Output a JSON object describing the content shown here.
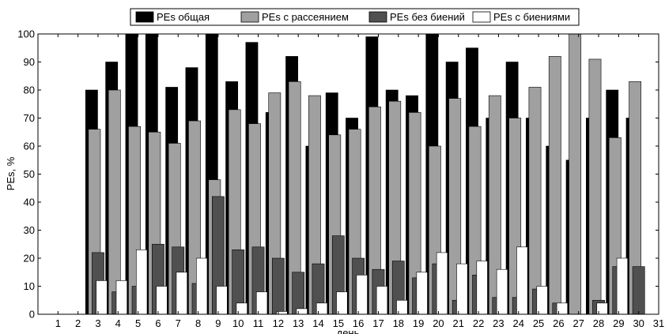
{
  "chart_data": {
    "type": "bar",
    "xlabel": "день",
    "ylabel": "PEs, %",
    "xlim": [
      0,
      31
    ],
    "ylim": [
      0,
      100
    ],
    "x_ticks": [
      1,
      2,
      3,
      4,
      5,
      6,
      7,
      8,
      9,
      10,
      11,
      12,
      13,
      14,
      15,
      16,
      17,
      18,
      19,
      20,
      21,
      22,
      23,
      24,
      25,
      26,
      27,
      28,
      29,
      30,
      31
    ],
    "y_ticks": [
      0,
      10,
      20,
      30,
      40,
      50,
      60,
      70,
      80,
      90,
      100
    ],
    "grid": false,
    "legend_position": "top-center",
    "categories": [
      3,
      4,
      5,
      6,
      7,
      8,
      9,
      10,
      11,
      12,
      13,
      14,
      15,
      16,
      17,
      18,
      19,
      20,
      21,
      22,
      23,
      24,
      25,
      26,
      27,
      28,
      29,
      30
    ],
    "series": [
      {
        "name": "PEs общая",
        "color": "#000000",
        "values": [
          80,
          90,
          100,
          100,
          81,
          88,
          100,
          83,
          97,
          72,
          92,
          60,
          79,
          70,
          99,
          80,
          78,
          100,
          90,
          95,
          70,
          90,
          70,
          60,
          55,
          70,
          80,
          70
        ]
      },
      {
        "name": "PEs с рассеянием",
        "color": "#a0a0a0",
        "values": [
          66,
          80,
          67,
          65,
          61,
          69,
          48,
          73,
          68,
          79,
          83,
          78,
          64,
          66,
          74,
          76,
          72,
          60,
          77,
          67,
          78,
          70,
          81,
          92,
          100,
          91,
          63,
          83
        ]
      },
      {
        "name": "PEs без биений",
        "color": "#505050",
        "values": [
          22,
          8,
          10,
          25,
          24,
          11,
          42,
          23,
          24,
          20,
          15,
          18,
          28,
          20,
          16,
          19,
          13,
          18,
          5,
          14,
          6,
          6,
          9,
          4,
          0,
          5,
          17,
          17
        ]
      },
      {
        "name": "PEs с биениями",
        "color": "#ffffff",
        "values": [
          12,
          12,
          23,
          10,
          15,
          20,
          10,
          4,
          8,
          1,
          2,
          4,
          8,
          14,
          10,
          5,
          15,
          22,
          18,
          19,
          16,
          24,
          10,
          4,
          0,
          4,
          20,
          0
        ]
      }
    ]
  }
}
